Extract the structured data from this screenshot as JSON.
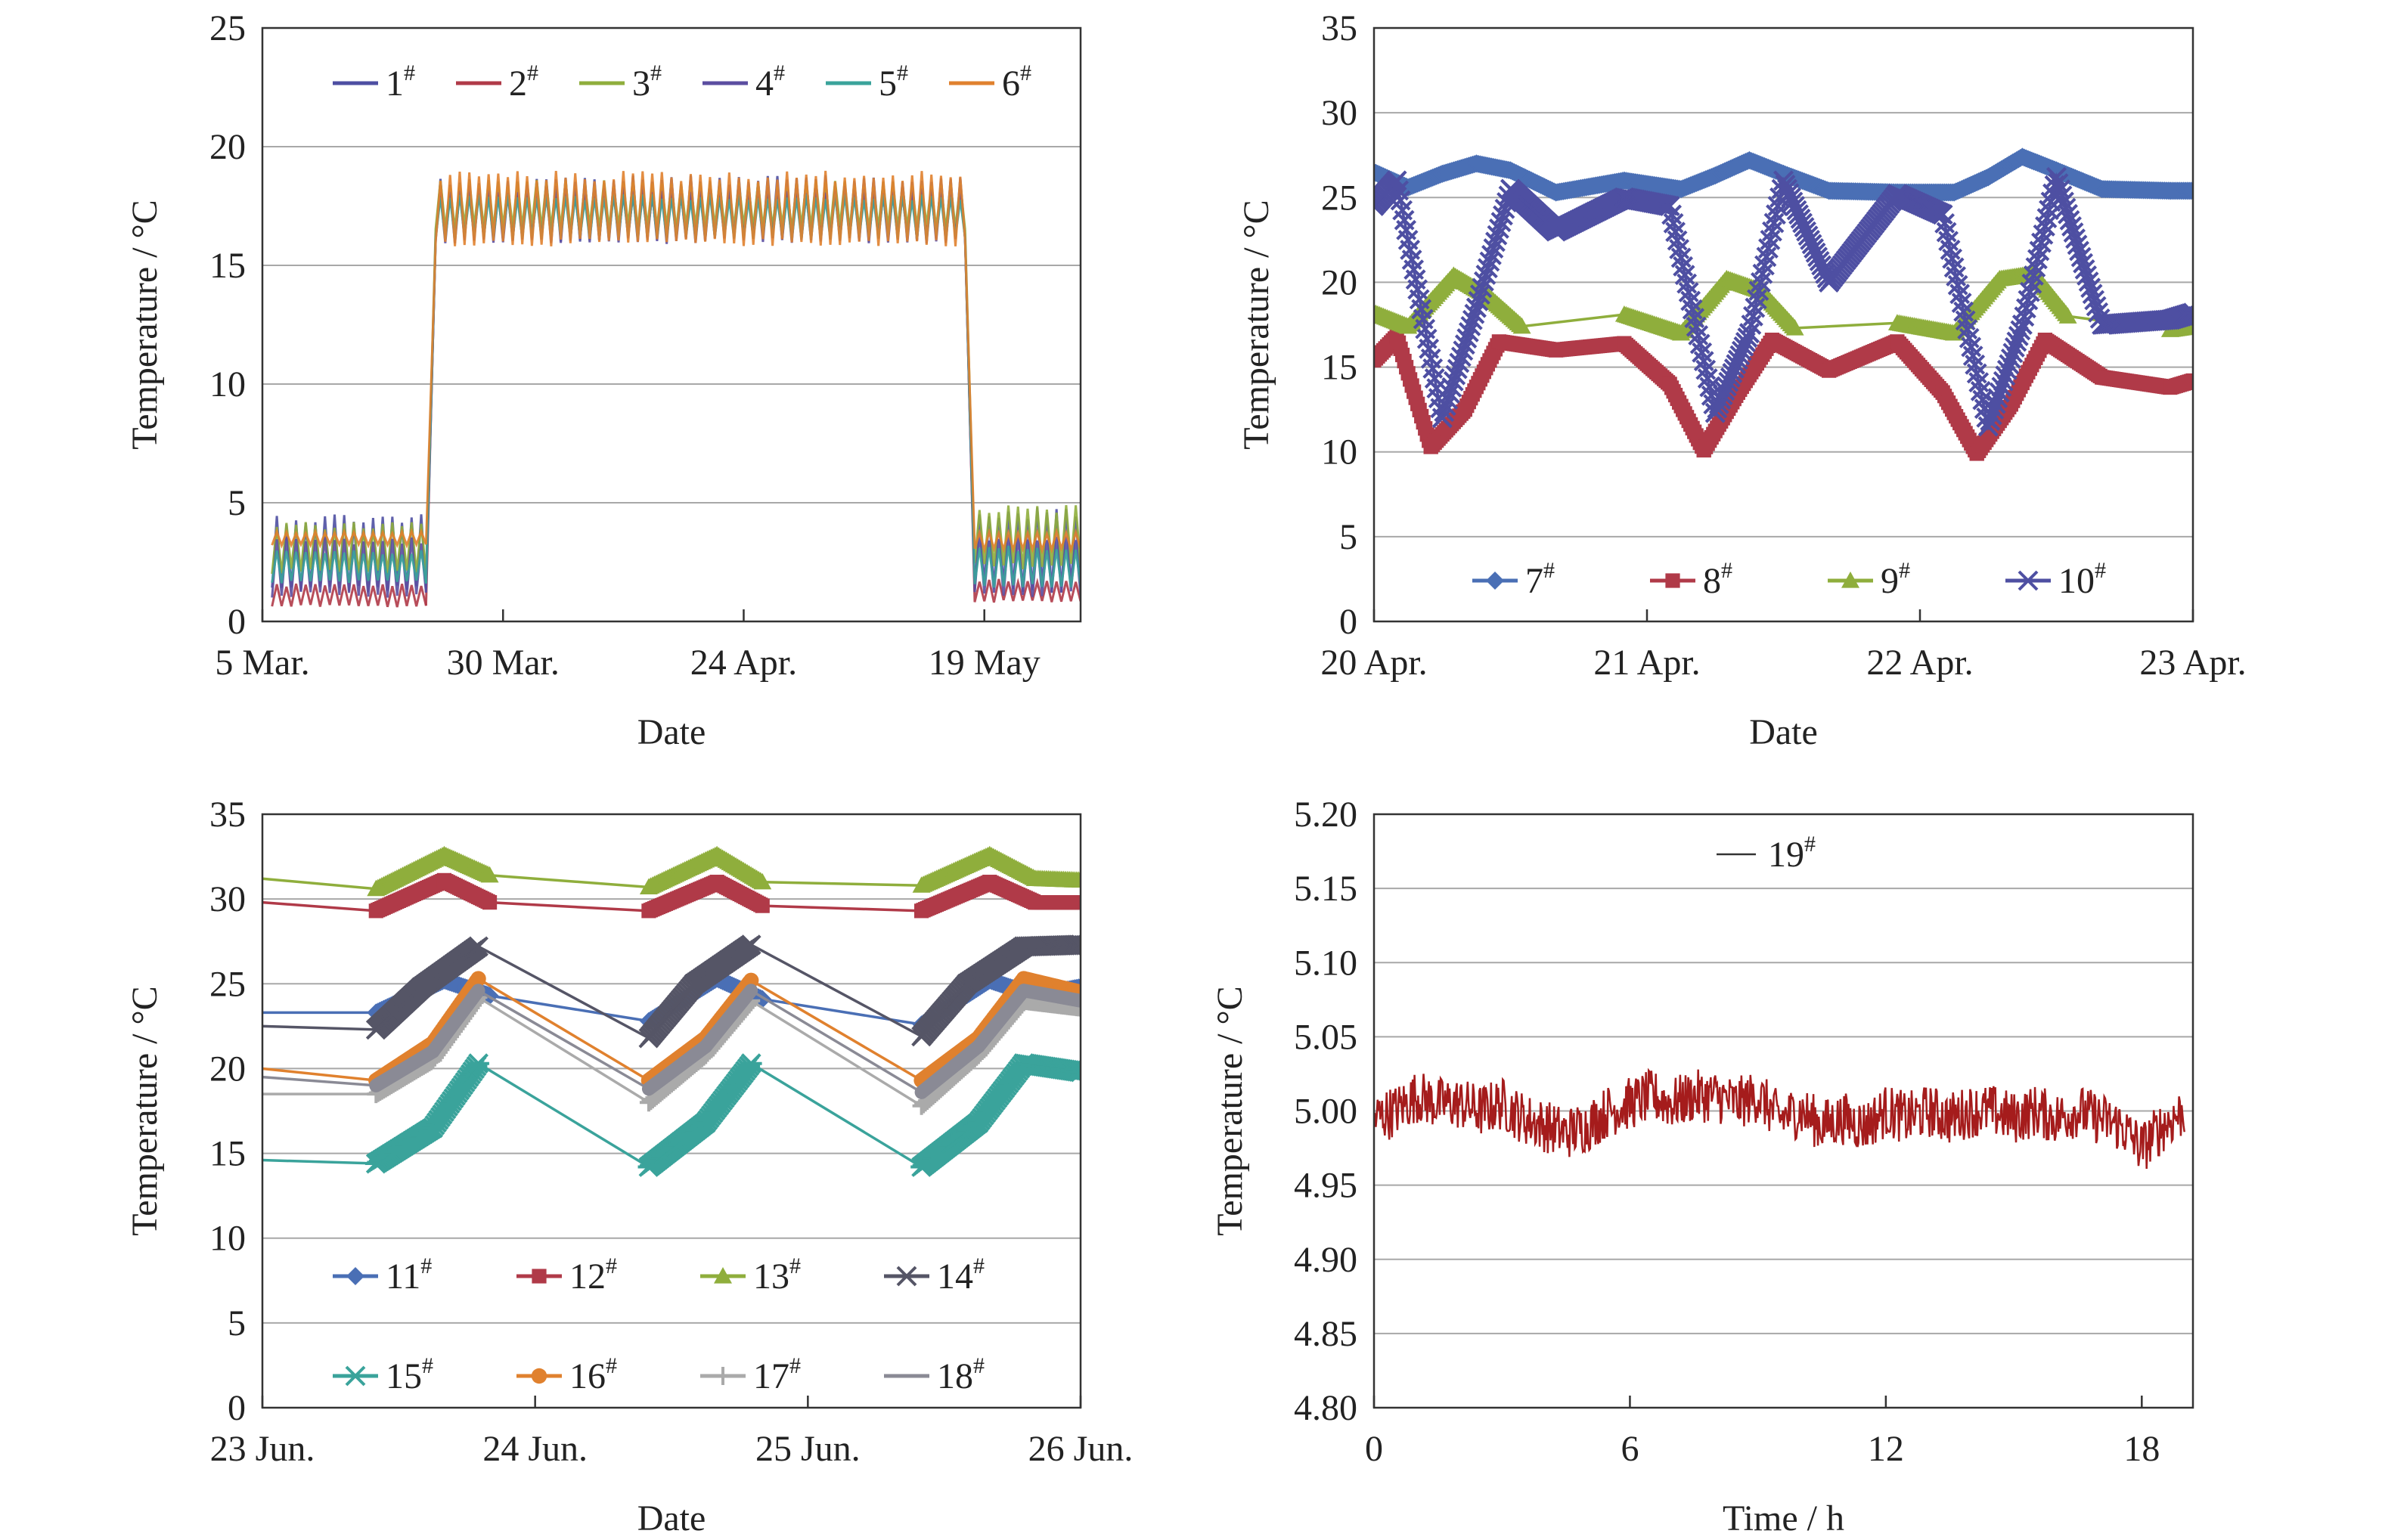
{
  "chart_data": [
    {
      "type": "line",
      "xlabel": "Date",
      "ylabel": "Temperature / °C",
      "ylim": [
        0,
        25
      ],
      "yticks": [
        0,
        5,
        10,
        15,
        20,
        25
      ],
      "xlim": [
        "2018-03-05",
        "2018-05-29"
      ],
      "xticks": [
        {
          "date": "2018-03-05",
          "label": "5 Mar."
        },
        {
          "date": "2018-03-30",
          "label": "30 Mar."
        },
        {
          "date": "2018-04-24",
          "label": "24 Apr."
        },
        {
          "date": "2018-05-19",
          "label": "19 May"
        }
      ],
      "grid": "horizontal",
      "legend": "top",
      "series": [
        {
          "name": "1",
          "sup": "#",
          "color": "#4e4fa2",
          "segments": [
            {
              "x": [
                "2018-03-06",
                "2018-03-22"
              ],
              "range": [
                1.2,
                4.6
              ]
            },
            {
              "x": [
                "2018-03-23",
                "2018-05-17"
              ],
              "range": [
                16.0,
                18.8
              ]
            },
            {
              "x": [
                "2018-05-18",
                "2018-05-29"
              ],
              "range": [
                1.2,
                4.8
              ]
            }
          ]
        },
        {
          "name": "2",
          "sup": "#",
          "color": "#b03a48",
          "segments": [
            {
              "x": [
                "2018-03-06",
                "2018-03-22"
              ],
              "range": [
                0.6,
                1.6
              ]
            },
            {
              "x": [
                "2018-03-23",
                "2018-05-17"
              ],
              "range": [
                16.2,
                18.2
              ]
            },
            {
              "x": [
                "2018-05-18",
                "2018-05-29"
              ],
              "range": [
                0.8,
                1.8
              ]
            }
          ]
        },
        {
          "name": "3",
          "sup": "#",
          "color": "#8fae3c",
          "segments": [
            {
              "x": [
                "2018-03-06",
                "2018-03-22"
              ],
              "range": [
                2.0,
                4.2
              ]
            },
            {
              "x": [
                "2018-03-23",
                "2018-05-17"
              ],
              "range": [
                16.5,
                18.6
              ]
            },
            {
              "x": [
                "2018-05-18",
                "2018-05-29"
              ],
              "range": [
                2.2,
                4.9
              ]
            }
          ]
        },
        {
          "name": "4",
          "sup": "#",
          "color": "#5b4ea0",
          "segments": [
            {
              "x": [
                "2018-03-06",
                "2018-03-22"
              ],
              "range": [
                1.0,
                3.6
              ]
            },
            {
              "x": [
                "2018-03-23",
                "2018-05-17"
              ],
              "range": [
                15.9,
                18.4
              ]
            },
            {
              "x": [
                "2018-05-18",
                "2018-05-29"
              ],
              "range": [
                1.0,
                3.8
              ]
            }
          ]
        },
        {
          "name": "5",
          "sup": "#",
          "color": "#3aa39b",
          "segments": [
            {
              "x": [
                "2018-03-06",
                "2018-03-22"
              ],
              "range": [
                1.6,
                3.0
              ]
            },
            {
              "x": [
                "2018-03-23",
                "2018-05-17"
              ],
              "range": [
                16.1,
                18.0
              ]
            },
            {
              "x": [
                "2018-05-18",
                "2018-05-29"
              ],
              "range": [
                1.4,
                3.2
              ]
            }
          ]
        },
        {
          "name": "6",
          "sup": "#",
          "color": "#e0812e",
          "segments": [
            {
              "x": [
                "2018-03-06",
                "2018-03-22"
              ],
              "range": [
                3.2,
                3.8
              ]
            },
            {
              "x": [
                "2018-03-23",
                "2018-05-17"
              ],
              "range": [
                15.8,
                19.0
              ]
            },
            {
              "x": [
                "2018-05-18",
                "2018-05-29"
              ],
              "range": [
                3.0,
                3.8
              ]
            }
          ]
        }
      ]
    },
    {
      "type": "line",
      "xlabel": "Date",
      "ylabel": "Temperature / °C",
      "ylim": [
        0,
        35
      ],
      "yticks": [
        0,
        5,
        10,
        15,
        20,
        25,
        30,
        35
      ],
      "xlim": [
        "2018-04-20",
        "2018-04-23"
      ],
      "xticks": [
        {
          "date": "2018-04-20",
          "label": "20 Apr."
        },
        {
          "date": "2018-04-21",
          "label": "21 Apr."
        },
        {
          "date": "2018-04-22",
          "label": "22 Apr."
        },
        {
          "date": "2018-04-23",
          "label": "23 Apr."
        }
      ],
      "grid": "horizontal",
      "legend": "bottom",
      "series": [
        {
          "name": "7",
          "sup": "#",
          "color": "#4a6fb5",
          "marker": "diamond",
          "x": [
            "2018-04-20 00:00",
            "2018-04-20 03:00",
            "2018-04-20 06:00",
            "2018-04-20 09:00",
            "2018-04-20 12:00",
            "2018-04-20 16:00",
            "2018-04-20 22:00",
            "2018-04-21 03:00",
            "2018-04-21 06:00",
            "2018-04-21 09:00",
            "2018-04-21 12:00",
            "2018-04-21 16:00",
            "2018-04-21 22:00",
            "2018-04-22 03:00",
            "2018-04-22 06:00",
            "2018-04-22 09:00",
            "2018-04-22 12:00",
            "2018-04-22 16:00",
            "2018-04-22 22:00",
            "2018-04-23 00:00"
          ],
          "y": [
            26.5,
            25.6,
            26.4,
            27.0,
            26.6,
            25.3,
            26.0,
            25.5,
            26.3,
            27.2,
            26.4,
            25.4,
            25.3,
            25.3,
            26.2,
            27.4,
            26.6,
            25.5,
            25.4,
            25.4
          ]
        },
        {
          "name": "8",
          "sup": "#",
          "color": "#b03a48",
          "marker": "square",
          "x": [
            "2018-04-20 00:00",
            "2018-04-20 02:00",
            "2018-04-20 05:00",
            "2018-04-20 08:00",
            "2018-04-20 11:00",
            "2018-04-20 16:00",
            "2018-04-20 22:00",
            "2018-04-21 02:00",
            "2018-04-21 05:00",
            "2018-04-21 08:00",
            "2018-04-21 11:00",
            "2018-04-21 16:00",
            "2018-04-21 22:00",
            "2018-04-22 02:00",
            "2018-04-22 05:00",
            "2018-04-22 08:00",
            "2018-04-22 11:00",
            "2018-04-22 16:00",
            "2018-04-22 22:00",
            "2018-04-23 00:00"
          ],
          "y": [
            15.4,
            16.8,
            10.3,
            12.5,
            16.5,
            16.0,
            16.4,
            14.0,
            10.1,
            13.5,
            16.6,
            14.8,
            16.5,
            13.5,
            9.9,
            12.8,
            16.6,
            14.4,
            13.8,
            14.2
          ]
        },
        {
          "name": "9",
          "sup": "#",
          "color": "#8fae3c",
          "marker": "triangle",
          "x": [
            "2018-04-20 00:00",
            "2018-04-20 03:00",
            "2018-04-20 07:00",
            "2018-04-20 10:00",
            "2018-04-20 13:00",
            "2018-04-20 22:00",
            "2018-04-21 03:00",
            "2018-04-21 07:00",
            "2018-04-21 10:00",
            "2018-04-21 13:00",
            "2018-04-21 22:00",
            "2018-04-22 03:00",
            "2018-04-22 07:00",
            "2018-04-22 10:00",
            "2018-04-22 13:00",
            "2018-04-22 22:00",
            "2018-04-23 00:00"
          ],
          "y": [
            18.2,
            17.4,
            20.4,
            19.2,
            17.4,
            18.1,
            17.0,
            20.2,
            19.5,
            17.3,
            17.6,
            17.0,
            20.2,
            20.5,
            18.0,
            17.2,
            17.4
          ]
        },
        {
          "name": "10",
          "sup": "#",
          "color": "#4e4fa2",
          "marker": "cross",
          "x": [
            "2018-04-20 00:00",
            "2018-04-20 02:00",
            "2018-04-20 06:00",
            "2018-04-20 09:00",
            "2018-04-20 12:00",
            "2018-04-20 16:00",
            "2018-04-20 22:00",
            "2018-04-21 02:00",
            "2018-04-21 06:00",
            "2018-04-21 09:00",
            "2018-04-21 12:00",
            "2018-04-21 16:00",
            "2018-04-21 22:00",
            "2018-04-22 02:00",
            "2018-04-22 06:00",
            "2018-04-22 09:00",
            "2018-04-22 12:00",
            "2018-04-22 16:00",
            "2018-04-22 22:00",
            "2018-04-23 00:00"
          ],
          "y": [
            24.5,
            26.0,
            12.0,
            18.5,
            25.5,
            23.0,
            25.0,
            24.5,
            12.3,
            17.0,
            26.0,
            20.0,
            25.2,
            24.0,
            11.5,
            17.5,
            26.2,
            17.5,
            17.8,
            18.2
          ]
        }
      ]
    },
    {
      "type": "line",
      "xlabel": "Date",
      "ylabel": "Temperature / °C",
      "ylim": [
        0,
        35
      ],
      "yticks": [
        0,
        5,
        10,
        15,
        20,
        25,
        30,
        35
      ],
      "xlim": [
        "2018-06-23",
        "2018-06-26"
      ],
      "xticks": [
        {
          "date": "2018-06-23",
          "label": "23 Jun."
        },
        {
          "date": "2018-06-24",
          "label": "24 Jun."
        },
        {
          "date": "2018-06-25",
          "label": "25 Jun."
        },
        {
          "date": "2018-06-26",
          "label": "26 Jun."
        }
      ],
      "grid": "horizontal",
      "legend": "bottom",
      "series": [
        {
          "name": "11",
          "sup": "#",
          "color": "#4a6fb5",
          "marker": "diamond",
          "x": [
            "2018-06-23 00:00",
            "2018-06-23 10:00",
            "2018-06-23 16:00",
            "2018-06-23 20:00",
            "2018-06-24 10:00",
            "2018-06-24 16:00",
            "2018-06-24 20:00",
            "2018-06-25 10:00",
            "2018-06-25 16:00",
            "2018-06-25 20:00",
            "2018-06-26 00:00"
          ],
          "y": [
            23.3,
            23.3,
            25.2,
            24.3,
            22.8,
            25.3,
            24.1,
            22.6,
            25.2,
            24.3,
            24.8
          ]
        },
        {
          "name": "12",
          "sup": "#",
          "color": "#b03a48",
          "marker": "square",
          "x": [
            "2018-06-23 00:00",
            "2018-06-23 10:00",
            "2018-06-23 16:00",
            "2018-06-23 20:00",
            "2018-06-24 10:00",
            "2018-06-24 16:00",
            "2018-06-24 20:00",
            "2018-06-25 10:00",
            "2018-06-25 16:00",
            "2018-06-25 20:00",
            "2018-06-26 00:00"
          ],
          "y": [
            29.8,
            29.3,
            31.1,
            29.8,
            29.3,
            31.0,
            29.6,
            29.3,
            31.0,
            29.8,
            29.8
          ]
        },
        {
          "name": "13",
          "sup": "#",
          "color": "#8fae3c",
          "marker": "triangle",
          "x": [
            "2018-06-23 00:00",
            "2018-06-23 10:00",
            "2018-06-23 16:00",
            "2018-06-23 20:00",
            "2018-06-24 10:00",
            "2018-06-24 16:00",
            "2018-06-24 20:00",
            "2018-06-25 10:00",
            "2018-06-25 16:00",
            "2018-06-25 20:00",
            "2018-06-26 00:00"
          ],
          "y": [
            31.2,
            30.6,
            32.6,
            31.4,
            30.7,
            32.6,
            31.0,
            30.8,
            32.6,
            31.2,
            31.1
          ]
        },
        {
          "name": "14",
          "sup": "#",
          "color": "#555566",
          "marker": "cross",
          "x": [
            "2018-06-23 00:00",
            "2018-06-23 10:00",
            "2018-06-23 14:00",
            "2018-06-23 19:00",
            "2018-06-24 10:00",
            "2018-06-24 14:00",
            "2018-06-24 19:00",
            "2018-06-25 10:00",
            "2018-06-25 14:00",
            "2018-06-25 19:00",
            "2018-06-26 00:00"
          ],
          "y": [
            22.5,
            22.3,
            24.8,
            27.2,
            21.8,
            25.0,
            27.3,
            21.9,
            25.0,
            27.2,
            27.3
          ]
        },
        {
          "name": "15",
          "sup": "#",
          "color": "#3aa39b",
          "marker": "star",
          "x": [
            "2018-06-23 00:00",
            "2018-06-23 10:00",
            "2018-06-23 15:00",
            "2018-06-23 19:00",
            "2018-06-24 10:00",
            "2018-06-24 15:00",
            "2018-06-24 19:00",
            "2018-06-25 10:00",
            "2018-06-25 15:00",
            "2018-06-25 19:00",
            "2018-06-26 00:00"
          ],
          "y": [
            14.6,
            14.4,
            16.5,
            20.3,
            14.2,
            16.8,
            20.3,
            14.2,
            16.8,
            20.3,
            19.8
          ]
        },
        {
          "name": "16",
          "sup": "#",
          "color": "#e0812e",
          "marker": "circle",
          "x": [
            "2018-06-23 00:00",
            "2018-06-23 10:00",
            "2018-06-23 15:00",
            "2018-06-23 19:00",
            "2018-06-24 10:00",
            "2018-06-24 15:00",
            "2018-06-24 19:00",
            "2018-06-25 10:00",
            "2018-06-25 15:00",
            "2018-06-25 19:00",
            "2018-06-26 00:00"
          ],
          "y": [
            20.0,
            19.3,
            21.5,
            25.3,
            19.3,
            21.8,
            25.2,
            19.3,
            21.8,
            25.3,
            24.5
          ]
        },
        {
          "name": "17",
          "sup": "#",
          "color": "#aaaaaa",
          "marker": "plus",
          "x": [
            "2018-06-23 00:00",
            "2018-06-23 10:00",
            "2018-06-23 15:00",
            "2018-06-23 19:00",
            "2018-06-24 10:00",
            "2018-06-24 15:00",
            "2018-06-24 19:00",
            "2018-06-25 10:00",
            "2018-06-25 15:00",
            "2018-06-25 19:00",
            "2018-06-26 00:00"
          ],
          "y": [
            18.5,
            18.5,
            20.5,
            24.2,
            18.0,
            20.8,
            24.0,
            17.8,
            20.8,
            24.0,
            23.6
          ]
        },
        {
          "name": "18",
          "sup": "#",
          "color": "#8a8a95",
          "marker": "none",
          "x": [
            "2018-06-23 00:00",
            "2018-06-23 10:00",
            "2018-06-23 15:00",
            "2018-06-23 19:00",
            "2018-06-24 10:00",
            "2018-06-24 15:00",
            "2018-06-24 19:00",
            "2018-06-25 10:00",
            "2018-06-25 15:00",
            "2018-06-25 19:00",
            "2018-06-26 00:00"
          ],
          "y": [
            19.5,
            19.0,
            21.0,
            24.6,
            18.8,
            21.3,
            24.6,
            18.6,
            21.3,
            24.6,
            24.0
          ]
        }
      ]
    },
    {
      "type": "line",
      "xlabel": "Time / h",
      "ylabel": "Temperature / °C",
      "ylim": [
        4.8,
        5.2
      ],
      "yticks": [
        "4.80",
        "4.85",
        "4.90",
        "4.95",
        "5.00",
        "5.05",
        "5.10",
        "5.15",
        "5.20"
      ],
      "xlim": [
        0,
        19.2
      ],
      "xticks": [
        0,
        6,
        12,
        18
      ],
      "grid": "horizontal",
      "legend": "top",
      "series": [
        {
          "name": "19",
          "sup": "#",
          "color": "#a51c1c",
          "x": [
            0,
            0.5,
            1.0,
            1.5,
            2.0,
            2.5,
            3.0,
            3.5,
            4.0,
            4.5,
            5.0,
            5.5,
            6.0,
            6.5,
            7.0,
            7.5,
            8.0,
            8.5,
            9.0,
            9.5,
            10.0,
            10.5,
            11.0,
            11.5,
            12.0,
            12.5,
            13.0,
            13.5,
            14.0,
            14.5,
            15.0,
            15.5,
            16.0,
            16.5,
            17.0,
            17.5,
            18.0,
            18.5,
            19.0
          ],
          "y": [
            4.995,
            5.0,
            5.01,
            5.005,
            5.005,
            5.0,
            5.005,
            4.995,
            4.99,
            4.985,
            4.99,
            5.0,
            5.005,
            5.01,
            5.005,
            5.01,
            5.01,
            5.005,
            5.01,
            4.995,
            5.0,
            4.99,
            4.995,
            4.99,
            5.0,
            4.995,
            5.0,
            4.995,
            5.0,
            5.0,
            4.995,
            5.0,
            4.995,
            5.0,
            4.995,
            4.99,
            4.975,
            4.99,
            5.0
          ],
          "noise": 0.018
        }
      ]
    }
  ]
}
